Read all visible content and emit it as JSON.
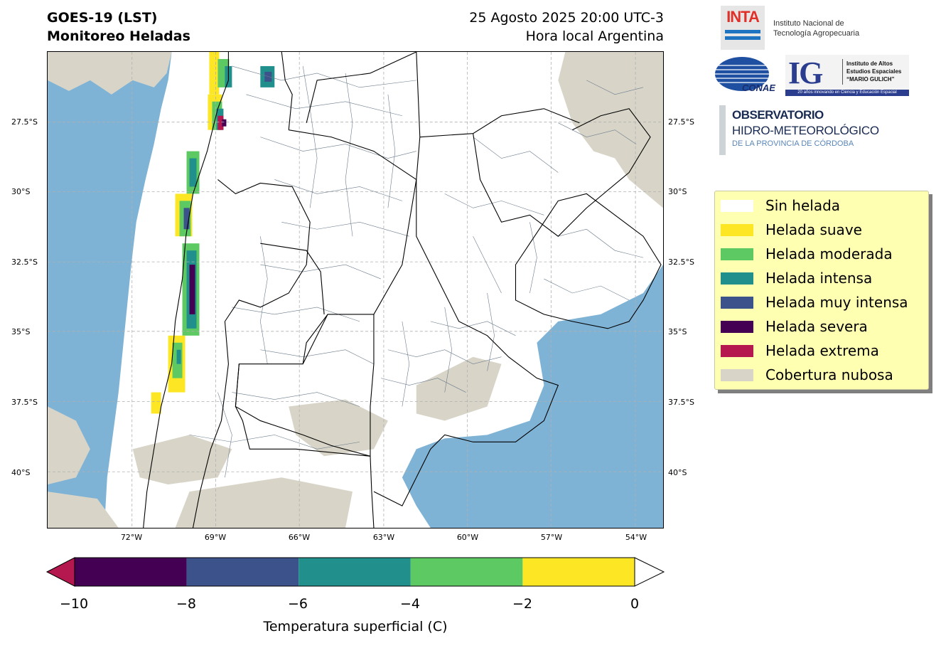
{
  "header": {
    "title_line1": "GOES-19 (LST)",
    "title_line2": "Monitoreo Heladas",
    "date_line": "25 Agosto 2025 20:00 UTC-3",
    "time_note": "Hora local Argentina"
  },
  "map": {
    "lat_labels": [
      "27.5°S",
      "30°S",
      "32.5°S",
      "35°S",
      "37.5°S",
      "40°S"
    ],
    "lon_labels": [
      "72°W",
      "69°W",
      "66°W",
      "63°W",
      "60°W",
      "57°W",
      "54°W"
    ],
    "colors": {
      "ocean": "#7fb3d5",
      "cloud": "#d8d5c8",
      "land": "#ffffff",
      "province_border": "#000000",
      "department_border": "#6b7b8c",
      "grid": "#b0b0b0"
    }
  },
  "colorbar": {
    "ticks": [
      "−10",
      "−8",
      "−6",
      "−4",
      "−2",
      "0"
    ],
    "label": "Temperatura superficial (C)",
    "bins": [
      {
        "from": -10,
        "to": -8,
        "color": "#440154"
      },
      {
        "from": -8,
        "to": -6,
        "color": "#3b528b"
      },
      {
        "from": -6,
        "to": -4,
        "color": "#21908d"
      },
      {
        "from": -4,
        "to": -2,
        "color": "#5dc963"
      },
      {
        "from": -2,
        "to": 0,
        "color": "#fde725"
      }
    ],
    "under_color": "#b5174f",
    "over_color": "#ffffff"
  },
  "legend": {
    "items": [
      {
        "label": "Sin helada",
        "color": "#ffffff"
      },
      {
        "label": "Helada suave",
        "color": "#fde725"
      },
      {
        "label": "Helada moderada",
        "color": "#5dc963"
      },
      {
        "label": "Helada intensa",
        "color": "#21908d"
      },
      {
        "label": "Helada muy intensa",
        "color": "#3b528b"
      },
      {
        "label": "Helada severa",
        "color": "#440154"
      },
      {
        "label": "Helada extrema",
        "color": "#b5174f"
      },
      {
        "label": "Cobertura nubosa",
        "color": "#d8d5c8"
      }
    ]
  },
  "logos": {
    "inta": {
      "mark": "INTA",
      "line1": "Instituto Nacional de",
      "line2": "Tecnología Agropecuaria"
    },
    "conae": {
      "mark": "CONAE"
    },
    "ig": {
      "mark": "IG",
      "line1": "Instituto de Altos",
      "line2": "Estudios Espaciales",
      "line3": "“MARIO GULICH”",
      "strip": "20 años innovando en Ciencia y Educación Espacial"
    },
    "observatorio": {
      "line1": "OBSERVATORIO",
      "line2": "HIDRO-METEOROLÓGICO",
      "line3": "DE LA PROVINCIA DE CÓRDOBA"
    }
  }
}
